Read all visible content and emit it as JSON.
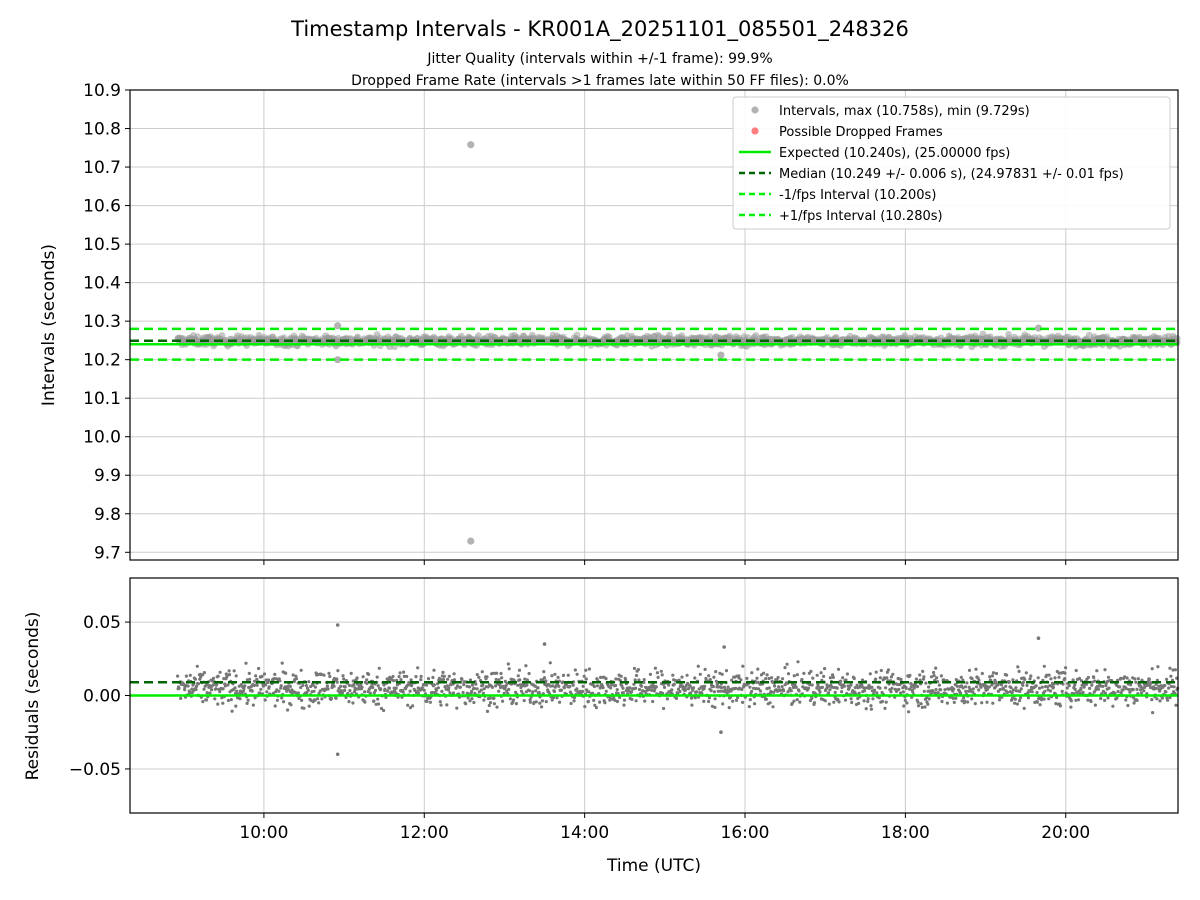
{
  "figure": {
    "title": "Timestamp Intervals - KR001A_20251101_085501_248326",
    "subtitle_line1": "Jitter Quality (intervals within +/-1 frame): 99.9%",
    "subtitle_line2": "Dropped Frame Rate (intervals >1 frames late within 50 FF files): 0.0%"
  },
  "colors": {
    "interval_points": "#999999",
    "dropped_points": "#ff6666",
    "expected": "#00ee00",
    "median": "#006400",
    "fps_bounds": "#00ee00",
    "residual_points": "#777777",
    "grid": "#cccccc"
  },
  "chart_data": [
    {
      "type": "scatter",
      "panel": "intervals",
      "ylabel": "Intervals (seconds)",
      "xlabel": "",
      "xlim_hours": [
        8.33,
        21.4
      ],
      "ylim": [
        9.68,
        10.9
      ],
      "yticks": [
        9.7,
        9.8,
        9.9,
        10.0,
        10.1,
        10.2,
        10.3,
        10.4,
        10.5,
        10.6,
        10.7,
        10.8,
        10.9
      ],
      "ytick_labels": [
        "9.7",
        "9.8",
        "9.9",
        "10.0",
        "10.1",
        "10.2",
        "10.3",
        "10.4",
        "10.5",
        "10.6",
        "10.7",
        "10.8",
        "10.9"
      ],
      "xtick_hours": [
        10,
        12,
        14,
        16,
        18,
        20
      ],
      "grid": true,
      "data_start_hour": 8.92,
      "data_end_hour": 21.4,
      "median": 10.249,
      "median_spread": 0.006,
      "outliers": [
        {
          "time": "12:35",
          "hour": 12.58,
          "value": 10.758
        },
        {
          "time": "12:35",
          "hour": 12.58,
          "value": 9.729
        },
        {
          "time": "10:55",
          "hour": 10.92,
          "value": 10.288
        },
        {
          "time": "10:55",
          "hour": 10.92,
          "value": 10.2
        },
        {
          "time": "15:42",
          "hour": 15.7,
          "value": 10.212
        },
        {
          "time": "19:40",
          "hour": 19.66,
          "value": 10.282
        }
      ],
      "reference_lines": [
        {
          "name": "expected",
          "value": 10.24
        },
        {
          "name": "median",
          "value": 10.249
        },
        {
          "name": "minus_1_fps",
          "value": 10.2
        },
        {
          "name": "plus_1_fps",
          "value": 10.28
        }
      ],
      "legend_position": "top-right",
      "legend": [
        {
          "label": "Intervals, max (10.758s), min (9.729s)",
          "kind": "marker",
          "color": "#999999"
        },
        {
          "label": "Possible Dropped Frames",
          "kind": "marker",
          "color": "#ff6666"
        },
        {
          "label": "Expected (10.240s), (25.00000 fps)",
          "kind": "solid",
          "color": "#00ee00"
        },
        {
          "label": "Median (10.249 +/- 0.006 s), (24.97831 +/- 0.01 fps)",
          "kind": "dashed",
          "color": "#006400"
        },
        {
          "label": "-1/fps Interval (10.200s)",
          "kind": "dashed",
          "color": "#00ee00"
        },
        {
          "label": "+1/fps Interval (10.280s)",
          "kind": "dashed",
          "color": "#00ee00"
        }
      ]
    },
    {
      "type": "scatter",
      "panel": "residuals",
      "ylabel": "Residuals (seconds)",
      "xlabel": "Time (UTC)",
      "xlim_hours": [
        8.33,
        21.4
      ],
      "ylim": [
        -0.08,
        0.08
      ],
      "yticks": [
        -0.05,
        0.0,
        0.05
      ],
      "ytick_labels": [
        "−0.05",
        "0.00",
        "0.05"
      ],
      "xtick_hours": [
        10,
        12,
        14,
        16,
        18,
        20
      ],
      "xtick_labels": [
        "10:00",
        "12:00",
        "14:00",
        "16:00",
        "18:00",
        "20:00"
      ],
      "grid": true,
      "data_start_hour": 8.92,
      "data_end_hour": 21.4,
      "residual_center": 0.005,
      "residual_spread": 0.006,
      "outliers": [
        {
          "hour": 10.92,
          "value": 0.048
        },
        {
          "hour": 10.92,
          "value": -0.04
        },
        {
          "hour": 13.5,
          "value": 0.035
        },
        {
          "hour": 15.7,
          "value": -0.025
        },
        {
          "hour": 15.74,
          "value": 0.033
        },
        {
          "hour": 19.66,
          "value": 0.039
        }
      ],
      "reference_lines": [
        {
          "name": "expected",
          "value": 0.0
        },
        {
          "name": "median",
          "value": 0.009
        }
      ]
    }
  ]
}
